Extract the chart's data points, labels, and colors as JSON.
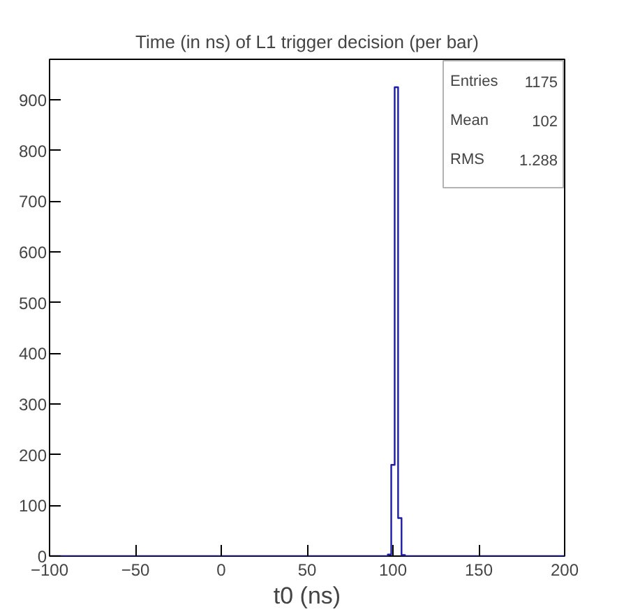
{
  "chart_data": {
    "type": "histogram",
    "title": "Time (in ns) of L1 trigger decision (per bar)",
    "xlabel": "t0 (ns)",
    "bins": [
      -100,
      97,
      99,
      101,
      103,
      105,
      107,
      200
    ],
    "values": [
      0,
      3,
      180,
      925,
      75,
      2,
      0
    ],
    "color": "#1c1ca8",
    "xlim": [
      -100,
      200
    ],
    "xticks": [
      -100,
      -50,
      0,
      50,
      100,
      150,
      200
    ],
    "ylim": [
      0,
      980
    ],
    "yticks": [
      0,
      100,
      200,
      300,
      400,
      500,
      600,
      700,
      800,
      900
    ],
    "grid": false,
    "annotations": [
      "Entries",
      "1175",
      "Mean",
      "102",
      "RMS",
      "1.288"
    ]
  }
}
